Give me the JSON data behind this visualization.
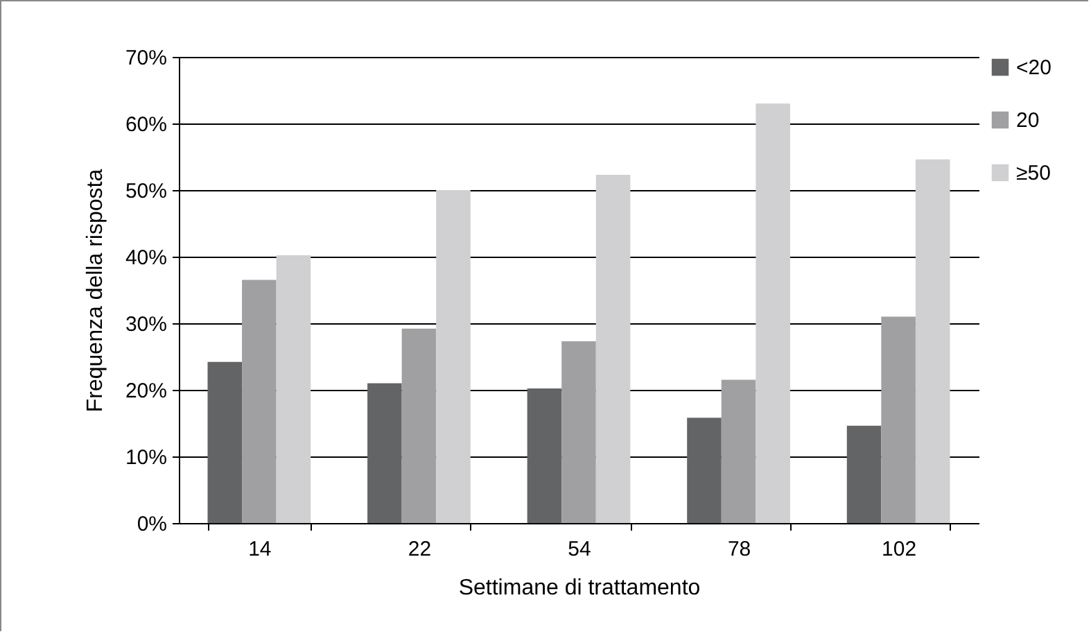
{
  "chart_data": {
    "type": "bar",
    "xlabel": "Settimane di trattamento",
    "ylabel": "Frequenza della risposta",
    "categories": [
      "14",
      "22",
      "54",
      "78",
      "102"
    ],
    "series": [
      {
        "name": "<20",
        "color": "#636466",
        "values": [
          24.2,
          21,
          20.2,
          15.8,
          14.6
        ]
      },
      {
        "name": "20",
        "color": "#a0a0a2",
        "values": [
          36.5,
          29.2,
          27.3,
          21.5,
          31
        ]
      },
      {
        "name": "≥50",
        "color": "#d0d0d2",
        "values": [
          40.2,
          50,
          52.3,
          63,
          54.6
        ]
      }
    ],
    "ylim": [
      0,
      70
    ],
    "yticks": [
      {
        "value": 0,
        "label": "0%"
      },
      {
        "value": 10,
        "label": "10%"
      },
      {
        "value": 20,
        "label": "20%"
      },
      {
        "value": 30,
        "label": "30%"
      },
      {
        "value": 40,
        "label": "40%"
      },
      {
        "value": 50,
        "label": "50%"
      },
      {
        "value": 60,
        "label": "60%"
      },
      {
        "value": 70,
        "label": "70%"
      }
    ],
    "grid": "y",
    "legend": "right"
  }
}
